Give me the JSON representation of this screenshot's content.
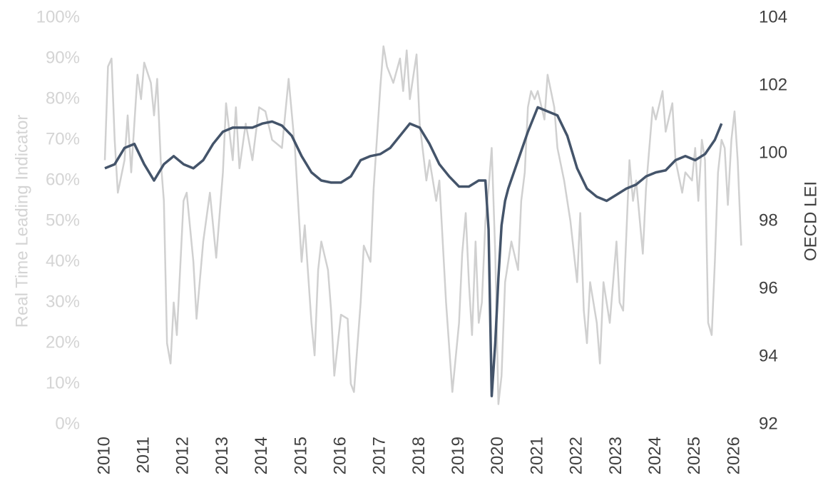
{
  "chart_data": {
    "type": "line",
    "y_label": "Real Time Leading Indicator",
    "y2_label": "OECD LEI",
    "xlim": [
      2010,
      2026.2
    ],
    "xticks": [
      2010,
      2011,
      2012,
      2013,
      2014,
      2015,
      2016,
      2017,
      2018,
      2019,
      2020,
      2021,
      2022,
      2023,
      2024,
      2025,
      2026
    ],
    "ylim": [
      0,
      100
    ],
    "yticks": [
      {
        "value": 0,
        "label": "0%"
      },
      {
        "value": 10,
        "label": "10%"
      },
      {
        "value": 20,
        "label": "20%"
      },
      {
        "value": 30,
        "label": "30%"
      },
      {
        "value": 40,
        "label": "40%"
      },
      {
        "value": 50,
        "label": "50%"
      },
      {
        "value": 60,
        "label": "60%"
      },
      {
        "value": 70,
        "label": "70%"
      },
      {
        "value": 80,
        "label": "80%"
      },
      {
        "value": 90,
        "label": "90%"
      },
      {
        "value": 100,
        "label": "100%"
      }
    ],
    "y2lim": [
      92,
      104
    ],
    "y2ticks": [
      92,
      94,
      96,
      98,
      100,
      102,
      104
    ],
    "grid": false,
    "series": [
      {
        "name": "Real Time Leading Indicator",
        "color": "#d0d0d0",
        "axis": "y",
        "x": [
          2010.0,
          2010.08,
          2010.17,
          2010.25,
          2010.33,
          2010.5,
          2010.58,
          2010.67,
          2010.83,
          2010.92,
          2011.0,
          2011.17,
          2011.25,
          2011.33,
          2011.42,
          2011.5,
          2011.58,
          2011.67,
          2011.75,
          2011.83,
          2012.0,
          2012.08,
          2012.25,
          2012.33,
          2012.5,
          2012.67,
          2012.83,
          2013.0,
          2013.08,
          2013.25,
          2013.33,
          2013.42,
          2013.58,
          2013.75,
          2013.92,
          2014.08,
          2014.25,
          2014.5,
          2014.67,
          2014.83,
          2015.0,
          2015.08,
          2015.25,
          2015.33,
          2015.42,
          2015.5,
          2015.67,
          2015.75,
          2015.83,
          2016.0,
          2016.17,
          2016.25,
          2016.33,
          2016.5,
          2016.58,
          2016.75,
          2016.83,
          2017.0,
          2017.08,
          2017.17,
          2017.33,
          2017.5,
          2017.58,
          2017.67,
          2017.75,
          2017.92,
          2018.0,
          2018.17,
          2018.25,
          2018.42,
          2018.5,
          2018.67,
          2018.83,
          2019.0,
          2019.08,
          2019.17,
          2019.25,
          2019.33,
          2019.42,
          2019.5,
          2019.58,
          2019.67,
          2019.75,
          2019.83,
          2019.92,
          2020.0,
          2020.08,
          2020.17,
          2020.33,
          2020.5,
          2020.58,
          2020.67,
          2020.75,
          2020.83,
          2020.92,
          2021.0,
          2021.17,
          2021.25,
          2021.42,
          2021.5,
          2021.67,
          2021.83,
          2022.0,
          2022.08,
          2022.17,
          2022.25,
          2022.33,
          2022.5,
          2022.58,
          2022.67,
          2022.83,
          2023.0,
          2023.08,
          2023.17,
          2023.33,
          2023.42,
          2023.5,
          2023.67,
          2023.75,
          2023.92,
          2024.0,
          2024.17,
          2024.25,
          2024.42,
          2024.5,
          2024.67,
          2024.75,
          2024.92,
          2025.0,
          2025.08,
          2025.17,
          2025.25,
          2025.33,
          2025.42,
          2025.5,
          2025.58,
          2025.67,
          2025.75,
          2025.83,
          2025.92,
          2026.0,
          2026.08,
          2026.17
        ],
        "values": [
          65,
          88,
          90,
          70,
          57,
          65,
          76,
          62,
          86,
          80,
          89,
          84,
          76,
          85,
          65,
          55,
          20,
          15,
          30,
          22,
          55,
          57,
          40,
          26,
          45,
          57,
          41,
          62,
          79,
          65,
          78,
          63,
          74,
          65,
          78,
          77,
          70,
          68,
          85,
          68,
          40,
          49,
          25,
          17,
          38,
          45,
          38,
          28,
          12,
          27,
          26,
          10,
          8,
          30,
          44,
          40,
          58,
          83,
          93,
          88,
          84,
          90,
          82,
          92,
          80,
          91,
          74,
          60,
          65,
          55,
          60,
          30,
          8,
          25,
          42,
          52,
          35,
          22,
          45,
          25,
          30,
          50,
          58,
          68,
          42,
          5,
          12,
          35,
          45,
          38,
          55,
          62,
          78,
          82,
          80,
          82,
          75,
          86,
          78,
          68,
          60,
          50,
          35,
          52,
          28,
          20,
          35,
          25,
          15,
          35,
          25,
          45,
          30,
          28,
          65,
          55,
          60,
          42,
          58,
          78,
          75,
          82,
          72,
          79,
          65,
          57,
          62,
          60,
          68,
          55,
          70,
          65,
          25,
          22,
          40,
          62,
          70,
          68,
          54,
          70,
          77,
          65,
          44
        ]
      },
      {
        "name": "OECD LEI",
        "color": "#44546a",
        "axis": "y2",
        "x": [
          2010.0,
          2010.25,
          2010.5,
          2010.75,
          2011.0,
          2011.25,
          2011.5,
          2011.75,
          2012.0,
          2012.25,
          2012.5,
          2012.75,
          2013.0,
          2013.25,
          2013.5,
          2013.75,
          2014.0,
          2014.25,
          2014.5,
          2014.75,
          2015.0,
          2015.25,
          2015.5,
          2015.75,
          2016.0,
          2016.25,
          2016.5,
          2016.75,
          2017.0,
          2017.25,
          2017.5,
          2017.75,
          2018.0,
          2018.25,
          2018.5,
          2018.75,
          2019.0,
          2019.25,
          2019.5,
          2019.67,
          2019.75,
          2019.83,
          2019.92,
          2020.0,
          2020.08,
          2020.17,
          2020.25,
          2020.5,
          2020.75,
          2021.0,
          2021.25,
          2021.5,
          2021.75,
          2022.0,
          2022.25,
          2022.5,
          2022.75,
          2023.0,
          2023.25,
          2023.5,
          2023.75,
          2024.0,
          2024.25,
          2024.5,
          2024.75,
          2025.0,
          2025.25,
          2025.5,
          2025.67
        ],
        "values": [
          99.56,
          99.68,
          100.16,
          100.28,
          99.68,
          99.2,
          99.68,
          99.92,
          99.68,
          99.56,
          99.8,
          100.28,
          100.64,
          100.76,
          100.76,
          100.76,
          100.88,
          100.94,
          100.82,
          100.52,
          99.92,
          99.44,
          99.2,
          99.14,
          99.14,
          99.32,
          99.8,
          99.92,
          99.98,
          100.16,
          100.52,
          100.88,
          100.76,
          100.28,
          99.68,
          99.32,
          99.02,
          99.02,
          99.2,
          99.2,
          97.76,
          92.84,
          94.4,
          96.32,
          97.88,
          98.6,
          98.96,
          99.8,
          100.64,
          101.36,
          101.24,
          101.12,
          100.52,
          99.56,
          98.96,
          98.72,
          98.6,
          98.78,
          98.96,
          99.08,
          99.32,
          99.44,
          99.5,
          99.8,
          99.92,
          99.8,
          99.98,
          100.4,
          100.88
        ]
      }
    ]
  }
}
